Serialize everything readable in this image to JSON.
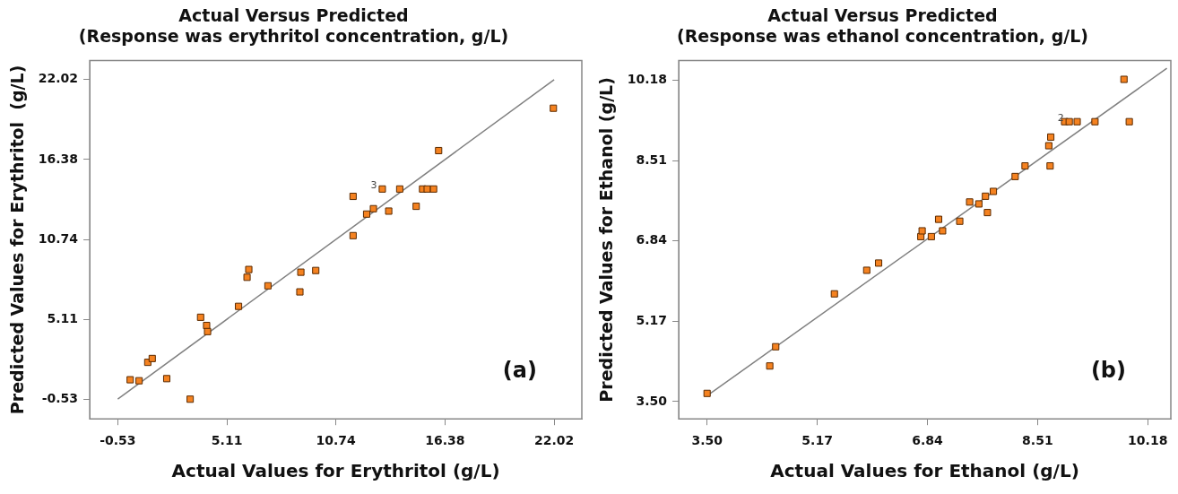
{
  "chart_data": [
    {
      "type": "scatter",
      "title": "Actual Versus Predicted",
      "subtitle": "(Response was erythritol concentration, g/L)",
      "xlabel": "Actual Values for Erythritol (g/L)",
      "ylabel": "Predicted Values for Erythritol  (g/L)",
      "xlim": [
        -1.98,
        23.45
      ],
      "ylim": [
        -1.92,
        23.36
      ],
      "xticks": [
        -0.53,
        5.11,
        10.74,
        16.38,
        22.02
      ],
      "yticks": [
        -0.53,
        5.11,
        10.74,
        16.38,
        22.02
      ],
      "grid": false,
      "legend": false,
      "marker": "square",
      "annotations": [
        {
          "text": "3",
          "x": 13.14,
          "y": 14.3
        },
        "(a)"
      ],
      "series": [
        {
          "type": "scatter",
          "color": "#f58220",
          "x": [
            0.11,
            0.57,
            1.02,
            1.25,
            2.0,
            3.21,
            3.75,
            4.06,
            4.11,
            5.71,
            6.24,
            6.15,
            7.23,
            8.93,
            8.88,
            9.7,
            11.63,
            11.63,
            12.33,
            12.68,
            13.14,
            13.47,
            14.04,
            14.89,
            15.22,
            15.46,
            15.79,
            16.05,
            21.98
          ],
          "values": [
            0.84,
            0.77,
            2.07,
            2.34,
            0.92,
            -0.53,
            5.25,
            4.67,
            4.24,
            6.02,
            8.62,
            8.07,
            7.47,
            8.43,
            7.04,
            8.55,
            11.01,
            13.78,
            12.53,
            12.91,
            14.3,
            12.74,
            14.3,
            13.08,
            14.3,
            14.3,
            14.3,
            17.01,
            20.0
          ]
        },
        {
          "type": "line",
          "color": "#808080",
          "marker": "none",
          "x": [
            -0.53,
            22.02
          ],
          "values": [
            -0.53,
            22.02
          ]
        }
      ]
    },
    {
      "type": "scatter",
      "title": "Actual Versus Predicted",
      "subtitle": "(Response was ethanol concentration, g/L)",
      "xlabel": "Actual Values for Ethanol (g/L)",
      "ylabel": "Predicted Values for Ethanol (g/L)",
      "xlim": [
        3.07,
        10.53
      ],
      "ylim": [
        3.14,
        10.59
      ],
      "xticks": [
        {
          "value": 3.5,
          "label": "3.50"
        },
        5.17,
        6.84,
        8.51,
        10.18
      ],
      "yticks": [
        {
          "value": 3.5,
          "label": "3.50"
        },
        5.17,
        6.84,
        8.51,
        10.18
      ],
      "grid": false,
      "legend": false,
      "marker": "square",
      "annotations": [
        {
          "text": "2",
          "x": 8.99,
          "y": 9.32
        },
        "(b)"
      ],
      "series": [
        {
          "type": "scatter",
          "color": "#f58220",
          "x": [
            3.5,
            4.54,
            4.45,
            5.43,
            5.92,
            6.1,
            6.74,
            6.76,
            6.9,
            7.01,
            7.07,
            7.33,
            7.48,
            7.62,
            7.72,
            7.75,
            7.84,
            8.17,
            8.32,
            8.68,
            8.71,
            8.7,
            8.92,
            8.99,
            9.11,
            9.38,
            9.82,
            9.9
          ],
          "values": [
            3.67,
            4.64,
            4.24,
            5.74,
            6.23,
            6.38,
            6.93,
            7.05,
            6.93,
            7.29,
            7.05,
            7.25,
            7.65,
            7.61,
            7.77,
            7.43,
            7.87,
            8.18,
            8.4,
            8.82,
            9.0,
            8.4,
            9.32,
            9.32,
            9.32,
            9.32,
            10.2,
            9.32
          ]
        },
        {
          "type": "line",
          "color": "#808080",
          "marker": "none",
          "x": [
            3.5,
            10.47
          ],
          "values": [
            3.62,
            10.43
          ]
        }
      ]
    }
  ]
}
